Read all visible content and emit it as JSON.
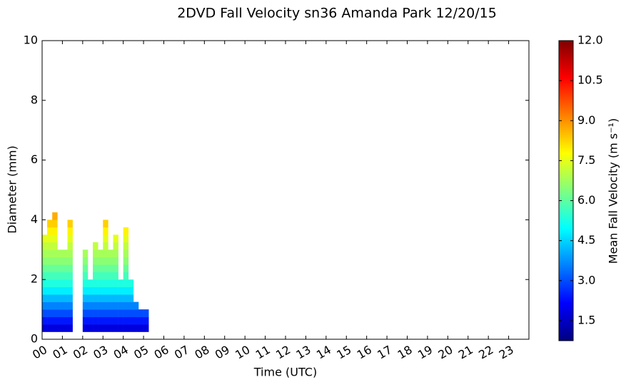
{
  "chart_data": {
    "type": "heatmap",
    "title": "2DVD Fall Velocity sn36 Amanda Park 12/20/15",
    "x_label": "Time (UTC)",
    "y_label": "Diameter (mm)",
    "colorbar_label": "Mean Fall Velocity (m s⁻¹)",
    "colormap": "jet",
    "xlim": [
      0,
      24
    ],
    "xticks": [
      {
        "value": 0,
        "label": "00"
      },
      {
        "value": 1,
        "label": "01"
      },
      {
        "value": 2,
        "label": "02"
      },
      {
        "value": 3,
        "label": "03"
      },
      {
        "value": 4,
        "label": "04"
      },
      {
        "value": 5,
        "label": "05"
      },
      {
        "value": 6,
        "label": "06"
      },
      {
        "value": 7,
        "label": "07"
      },
      {
        "value": 8,
        "label": "08"
      },
      {
        "value": 9,
        "label": "09"
      },
      {
        "value": 10,
        "label": "10"
      },
      {
        "value": 11,
        "label": "11"
      },
      {
        "value": 12,
        "label": "12"
      },
      {
        "value": 13,
        "label": "13"
      },
      {
        "value": 14,
        "label": "14"
      },
      {
        "value": 15,
        "label": "15"
      },
      {
        "value": 16,
        "label": "16"
      },
      {
        "value": 17,
        "label": "17"
      },
      {
        "value": 18,
        "label": "18"
      },
      {
        "value": 19,
        "label": "19"
      },
      {
        "value": 20,
        "label": "20"
      },
      {
        "value": 21,
        "label": "21"
      },
      {
        "value": 22,
        "label": "22"
      },
      {
        "value": 23,
        "label": "23"
      }
    ],
    "ylim": [
      0,
      10
    ],
    "yticks": [
      0,
      2,
      4,
      6,
      8,
      10
    ],
    "clim": [
      0.75,
      12
    ],
    "cticks": [
      1.5,
      {
        "value": 3,
        "label": "3.0"
      },
      4.5,
      {
        "value": 6,
        "label": "6.0"
      },
      7.5,
      {
        "value": 9,
        "label": "9.0"
      },
      10.5,
      {
        "value": 12,
        "label": "12.0"
      }
    ],
    "x": [
      0,
      0.25,
      0.5,
      0.75,
      1,
      1.25,
      1.5,
      1.75,
      2,
      2.25,
      2.5,
      2.75,
      3,
      3.25,
      3.5,
      3.75,
      4,
      4.25,
      4.5,
      4.75,
      5,
      5.25
    ],
    "y": [
      0.25,
      0.5,
      0.75,
      1,
      1.25,
      1.5,
      1.75,
      2,
      2.25,
      2.5,
      2.75,
      3,
      3.25,
      3.5,
      3.75,
      4,
      4.25
    ],
    "z": [
      [
        1.8,
        1.8,
        1.8,
        1.8,
        1.8,
        1.8,
        null,
        null,
        1.8,
        1.8,
        1.8,
        1.8,
        1.8,
        1.8,
        1.8,
        1.8,
        1.8,
        1.8,
        1.8,
        1.8,
        1.8
      ],
      [
        2.4,
        2.4,
        2.4,
        2.4,
        2.4,
        2.4,
        null,
        null,
        2.4,
        2.4,
        2.4,
        2.4,
        2.4,
        2.4,
        2.4,
        2.4,
        2.4,
        2.4,
        2.4,
        2.4,
        2.4
      ],
      [
        3.0,
        3.0,
        3.0,
        3.0,
        3.0,
        3.0,
        null,
        null,
        3.0,
        3.0,
        3.0,
        3.0,
        3.0,
        3.0,
        3.0,
        3.0,
        3.0,
        3.0,
        3.0,
        3.0,
        3.0
      ],
      [
        3.6,
        3.6,
        3.6,
        3.6,
        3.6,
        3.6,
        null,
        null,
        3.6,
        3.6,
        3.6,
        3.6,
        3.6,
        3.6,
        3.6,
        3.6,
        3.6,
        3.6,
        3.6,
        null,
        null
      ],
      [
        4.2,
        4.2,
        4.2,
        4.2,
        4.2,
        4.2,
        null,
        null,
        4.2,
        4.2,
        4.2,
        4.2,
        4.2,
        4.2,
        4.2,
        4.2,
        4.2,
        4.2,
        null,
        null,
        null
      ],
      [
        4.8,
        4.8,
        4.8,
        4.8,
        4.8,
        4.8,
        null,
        null,
        4.8,
        4.8,
        4.8,
        4.8,
        4.8,
        4.8,
        4.8,
        4.8,
        4.8,
        4.8,
        null,
        null,
        null
      ],
      [
        5.3,
        5.3,
        5.3,
        5.3,
        5.3,
        5.3,
        null,
        null,
        5.3,
        5.3,
        5.3,
        5.3,
        5.3,
        5.3,
        5.3,
        5.3,
        5.3,
        5.3,
        null,
        null,
        null
      ],
      [
        5.7,
        5.7,
        5.7,
        5.7,
        5.7,
        5.7,
        null,
        null,
        5.7,
        null,
        5.7,
        5.7,
        5.7,
        5.7,
        5.7,
        null,
        5.7,
        null,
        null,
        null,
        null
      ],
      [
        6.1,
        6.1,
        6.1,
        6.1,
        6.1,
        6.1,
        null,
        null,
        6.1,
        null,
        6.1,
        6.1,
        6.1,
        6.1,
        6.1,
        null,
        6.1,
        null,
        null,
        null,
        null
      ],
      [
        6.5,
        6.5,
        6.5,
        6.5,
        6.5,
        6.5,
        null,
        null,
        6.5,
        null,
        6.5,
        6.5,
        6.5,
        6.5,
        6.5,
        null,
        6.5,
        null,
        null,
        null,
        null
      ],
      [
        6.8,
        6.8,
        6.8,
        6.8,
        6.8,
        6.8,
        null,
        null,
        6.8,
        null,
        6.8,
        6.8,
        6.8,
        6.8,
        6.8,
        null,
        6.8,
        null,
        null,
        null,
        null
      ],
      [
        7.1,
        7.1,
        7.1,
        null,
        null,
        7.1,
        null,
        null,
        null,
        null,
        7.1,
        null,
        7.1,
        null,
        7.1,
        null,
        7.1,
        null,
        null,
        null,
        null
      ],
      [
        7.5,
        7.5,
        7.5,
        null,
        null,
        7.5,
        null,
        null,
        null,
        null,
        null,
        null,
        7.5,
        null,
        7.5,
        null,
        7.5,
        null,
        null,
        null,
        null
      ],
      [
        null,
        7.9,
        7.9,
        null,
        null,
        7.9,
        null,
        null,
        null,
        null,
        null,
        null,
        7.9,
        null,
        null,
        null,
        7.9,
        null,
        null,
        null,
        null
      ],
      [
        null,
        8.3,
        8.3,
        null,
        null,
        8.3,
        null,
        null,
        null,
        null,
        null,
        null,
        8.3,
        null,
        null,
        null,
        null,
        null,
        null,
        null,
        null
      ],
      [
        null,
        null,
        8.7,
        null,
        null,
        null,
        null,
        null,
        null,
        null,
        null,
        null,
        null,
        null,
        null,
        null,
        null,
        null,
        null,
        null,
        null
      ]
    ]
  }
}
